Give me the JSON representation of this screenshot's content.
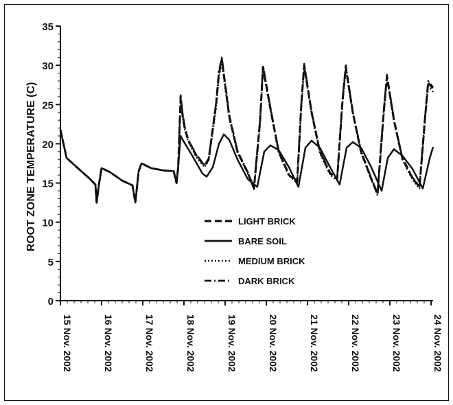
{
  "chart_data": {
    "type": "line",
    "ylabel": "ROOT ZONE TEMPERATURE (C)",
    "xlabel": "",
    "ylim": [
      0,
      35
    ],
    "xlim": [
      15,
      24.05
    ],
    "yticks": [
      0,
      5,
      10,
      15,
      20,
      25,
      30,
      35
    ],
    "x_tick_labels": [
      {
        "x": 15,
        "label": "15 Nov. 2002"
      },
      {
        "x": 16,
        "label": "16 Nov. 2002"
      },
      {
        "x": 17,
        "label": "17 Nov. 2002"
      },
      {
        "x": 18,
        "label": "18 Nov. 2002"
      },
      {
        "x": 19,
        "label": "19 Nov. 2002"
      },
      {
        "x": 20,
        "label": "20 Nov. 2002"
      },
      {
        "x": 21,
        "label": "21 Nov. 2002"
      },
      {
        "x": 22,
        "label": "22 Nov. 2002"
      },
      {
        "x": 23,
        "label": "23 Nov. 2002"
      },
      {
        "x": 24,
        "label": "24 Nov. 2002"
      }
    ],
    "legend_position": "center-right",
    "series": [
      {
        "name": "LIGHT BRICK",
        "style": "dashed",
        "x": [
          15.0,
          15.15,
          15.4,
          15.7,
          15.85,
          15.88,
          15.93,
          16.0,
          16.2,
          16.5,
          16.75,
          16.82,
          16.85,
          16.9,
          16.97,
          17.2,
          17.5,
          17.75,
          17.82,
          17.86,
          17.92,
          17.97,
          18.02,
          18.1,
          18.3,
          18.5,
          18.6,
          18.78,
          18.85,
          18.92,
          19.1,
          19.3,
          19.55,
          19.7,
          19.85,
          19.92,
          20.1,
          20.3,
          20.55,
          20.75,
          20.85,
          20.92,
          21.1,
          21.3,
          21.55,
          21.72,
          21.85,
          21.93,
          22.1,
          22.3,
          22.55,
          22.7,
          22.85,
          22.93,
          23.1,
          23.3,
          23.55,
          23.72,
          23.85,
          23.93,
          24.05
        ],
        "y": [
          21.8,
          18.2,
          17.0,
          15.6,
          14.8,
          12.5,
          14.6,
          16.9,
          16.4,
          15.3,
          14.7,
          12.5,
          14.0,
          16.5,
          17.5,
          16.9,
          16.6,
          16.5,
          15.0,
          17.0,
          26.0,
          23.5,
          22.0,
          20.5,
          18.5,
          17.2,
          18.0,
          25.0,
          29.0,
          30.8,
          23.5,
          19.0,
          16.3,
          14.3,
          23.0,
          29.8,
          24.5,
          19.0,
          16.0,
          15.2,
          25.0,
          30.0,
          24.0,
          19.0,
          16.2,
          15.5,
          25.5,
          29.8,
          24.0,
          19.0,
          15.5,
          13.6,
          24.0,
          28.6,
          23.0,
          18.2,
          15.6,
          14.5,
          23.0,
          27.8,
          27.0
        ]
      },
      {
        "name": "BARE SOIL",
        "style": "solid",
        "x": [
          15.0,
          15.15,
          15.4,
          15.7,
          15.85,
          15.88,
          15.93,
          16.0,
          16.2,
          16.5,
          16.75,
          16.82,
          16.85,
          16.9,
          16.97,
          17.2,
          17.5,
          17.75,
          17.82,
          17.86,
          17.92,
          17.97,
          18.2,
          18.45,
          18.55,
          18.7,
          18.85,
          18.97,
          19.1,
          19.3,
          19.55,
          19.78,
          19.95,
          20.1,
          20.3,
          20.55,
          20.78,
          20.95,
          21.1,
          21.3,
          21.55,
          21.78,
          21.95,
          22.1,
          22.3,
          22.55,
          22.8,
          22.95,
          23.1,
          23.3,
          23.55,
          23.8,
          23.97,
          24.05
        ],
        "y": [
          21.8,
          18.2,
          17.0,
          15.6,
          14.8,
          12.5,
          14.6,
          16.9,
          16.4,
          15.3,
          14.7,
          12.5,
          14.0,
          16.5,
          17.5,
          16.9,
          16.6,
          16.5,
          15.0,
          17.0,
          21.0,
          20.5,
          18.5,
          16.2,
          15.8,
          17.0,
          20.0,
          21.2,
          20.5,
          18.0,
          15.5,
          14.5,
          19.0,
          19.8,
          19.2,
          17.0,
          14.5,
          19.5,
          20.4,
          19.5,
          17.0,
          14.8,
          19.5,
          20.2,
          19.5,
          17.0,
          14.0,
          18.2,
          19.3,
          18.5,
          16.8,
          14.3,
          18.2,
          19.6
        ]
      },
      {
        "name": "MEDIUM BRICK",
        "style": "dotted",
        "x": [
          15.0,
          15.15,
          15.4,
          15.7,
          15.85,
          15.88,
          15.93,
          16.0,
          16.2,
          16.5,
          16.75,
          16.82,
          16.85,
          16.9,
          16.97,
          17.2,
          17.5,
          17.75,
          17.82,
          17.86,
          17.92,
          17.97,
          18.02,
          18.1,
          18.3,
          18.5,
          18.6,
          18.78,
          18.85,
          18.92,
          19.1,
          19.3,
          19.55,
          19.7,
          19.85,
          19.92,
          20.1,
          20.3,
          20.55,
          20.75,
          20.85,
          20.92,
          21.1,
          21.3,
          21.55,
          21.72,
          21.85,
          21.93,
          22.1,
          22.3,
          22.55,
          22.7,
          22.85,
          22.93,
          23.1,
          23.3,
          23.55,
          23.72,
          23.85,
          23.93,
          24.05
        ],
        "y": [
          21.8,
          18.2,
          17.0,
          15.6,
          14.8,
          12.5,
          14.6,
          16.9,
          16.4,
          15.3,
          14.7,
          12.5,
          14.0,
          16.5,
          17.5,
          16.9,
          16.6,
          16.5,
          15.0,
          17.0,
          25.5,
          23.2,
          21.8,
          20.3,
          18.3,
          17.0,
          17.8,
          24.5,
          28.5,
          30.3,
          23.2,
          18.8,
          16.2,
          14.2,
          22.5,
          29.4,
          24.2,
          18.8,
          15.9,
          15.0,
          24.5,
          29.6,
          23.8,
          18.8,
          16.0,
          15.3,
          25.0,
          29.4,
          23.8,
          18.8,
          15.4,
          13.4,
          23.5,
          28.2,
          22.8,
          18.0,
          15.4,
          14.3,
          22.5,
          27.4,
          26.6
        ]
      },
      {
        "name": "DARK BRICK",
        "style": "dash-dot",
        "x": [
          15.0,
          15.15,
          15.4,
          15.7,
          15.85,
          15.88,
          15.93,
          16.0,
          16.2,
          16.5,
          16.75,
          16.82,
          16.85,
          16.9,
          16.97,
          17.2,
          17.5,
          17.75,
          17.82,
          17.86,
          17.92,
          17.97,
          18.02,
          18.1,
          18.3,
          18.5,
          18.6,
          18.78,
          18.85,
          18.92,
          19.1,
          19.3,
          19.55,
          19.7,
          19.85,
          19.92,
          20.1,
          20.3,
          20.55,
          20.75,
          20.85,
          20.92,
          21.1,
          21.3,
          21.55,
          21.72,
          21.85,
          21.93,
          22.1,
          22.3,
          22.55,
          22.7,
          22.85,
          22.93,
          23.1,
          23.3,
          23.55,
          23.72,
          23.85,
          23.93,
          24.05
        ],
        "y": [
          21.8,
          18.2,
          17.0,
          15.6,
          14.8,
          12.5,
          14.6,
          16.9,
          16.4,
          15.3,
          14.7,
          12.5,
          14.0,
          16.5,
          17.5,
          16.9,
          16.6,
          16.5,
          15.0,
          17.0,
          26.2,
          23.8,
          22.2,
          20.6,
          18.6,
          17.3,
          18.1,
          25.2,
          29.3,
          31.0,
          23.7,
          19.1,
          16.4,
          14.4,
          23.2,
          30.0,
          24.6,
          19.1,
          16.1,
          15.3,
          25.2,
          30.2,
          24.1,
          19.1,
          16.3,
          15.6,
          25.6,
          30.0,
          24.1,
          19.1,
          15.6,
          13.7,
          24.2,
          28.8,
          23.1,
          18.3,
          15.7,
          14.6,
          23.2,
          28.0,
          27.2
        ]
      }
    ]
  }
}
